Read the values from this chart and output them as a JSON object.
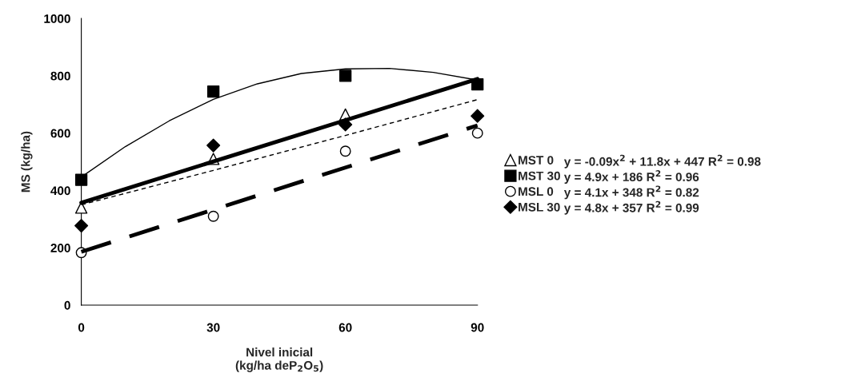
{
  "chart_data": {
    "type": "scatter",
    "xlabel": "Nivel inicial\n(kg/ha deP$_{2}$O$_{5}$)",
    "ylabel": "MS (kg/ha)",
    "x": [
      0,
      30,
      60,
      90
    ],
    "series": [
      {
        "name": "MST 0",
        "marker": "triangle",
        "color": "#ffffff",
        "values": [
          340,
          510,
          665,
          null
        ]
      },
      {
        "name": "MST 30",
        "marker": "square",
        "color": "#000000",
        "values": [
          437,
          745,
          800,
          770
        ]
      },
      {
        "name": "MSL 0",
        "marker": "circle",
        "color": "#ffffff",
        "values": [
          183,
          310,
          537,
          600
        ]
      },
      {
        "name": "MSL 30",
        "marker": "diamond",
        "color": "#000000",
        "values": [
          277,
          557,
          630,
          660
        ]
      },
      {
        "type": "line",
        "marker": "none",
        "line_style": "solid",
        "color": "#000000",
        "x": [
          0,
          10,
          20,
          30,
          40,
          50,
          60,
          70,
          80,
          90
        ],
        "values": [
          447,
          553,
          643,
          718,
          772,
          808,
          824,
          826,
          812,
          785
        ]
      },
      {
        "type": "line",
        "marker": "none",
        "line_style": "solid",
        "color": "#000000",
        "x": [
          0,
          90
        ],
        "values": [
          357,
          789
        ]
      },
      {
        "type": "line",
        "marker": "none",
        "line_style": "dashed",
        "color": "#000000",
        "x": [
          0,
          30,
          60,
          90
        ],
        "values": [
          350,
          470,
          592,
          717
        ]
      },
      {
        "type": "line",
        "marker": "none",
        "line_style": "dashed",
        "color": "#000000",
        "x": [
          0,
          90
        ],
        "values": [
          186,
          627
        ]
      }
    ],
    "xlim": [
      0,
      90
    ],
    "xticks": [
      0,
      30,
      60,
      90
    ],
    "ylim": [
      0,
      1000
    ],
    "yticks": [
      0,
      200,
      400,
      600,
      800,
      1000
    ],
    "grid": false,
    "legend": "right",
    "annotations": [
      "y = -0.09x$^{2}$ + 11.8x + 447 R$^{2}$ = 0.98",
      "y = 4.9x + 186 R$^{2}$ = 0.96",
      "y = 4.1x + 348 R$^{2}$ = 0.82",
      "y = 4.8x + 357 R$^{2}$ = 0.99"
    ]
  }
}
